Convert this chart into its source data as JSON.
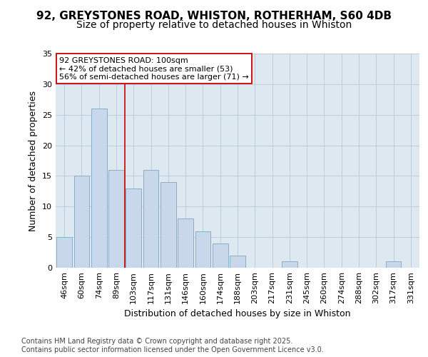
{
  "title_line1": "92, GREYSTONES ROAD, WHISTON, ROTHERHAM, S60 4DB",
  "title_line2": "Size of property relative to detached houses in Whiston",
  "xlabel": "Distribution of detached houses by size in Whiston",
  "ylabel": "Number of detached properties",
  "categories": [
    "46sqm",
    "60sqm",
    "74sqm",
    "89sqm",
    "103sqm",
    "117sqm",
    "131sqm",
    "146sqm",
    "160sqm",
    "174sqm",
    "188sqm",
    "203sqm",
    "217sqm",
    "231sqm",
    "245sqm",
    "260sqm",
    "274sqm",
    "288sqm",
    "302sqm",
    "317sqm",
    "331sqm"
  ],
  "values": [
    5,
    15,
    26,
    16,
    13,
    16,
    14,
    8,
    6,
    4,
    2,
    0,
    0,
    1,
    0,
    0,
    0,
    0,
    0,
    1,
    0
  ],
  "bar_color": "#c8d8ea",
  "bar_edge_color": "#8aafc8",
  "vline_x": 3.5,
  "vline_color": "#cc0000",
  "annotation_text": "92 GREYSTONES ROAD: 100sqm\n← 42% of detached houses are smaller (53)\n56% of semi-detached houses are larger (71) →",
  "annotation_box_color": "#ffffff",
  "annotation_box_edge": "#cc0000",
  "ylim": [
    0,
    35
  ],
  "yticks": [
    0,
    5,
    10,
    15,
    20,
    25,
    30,
    35
  ],
  "bg_color": "#ffffff",
  "plot_bg_color": "#dde8f0",
  "footer": "Contains HM Land Registry data © Crown copyright and database right 2025.\nContains public sector information licensed under the Open Government Licence v3.0.",
  "title_fontsize": 11,
  "subtitle_fontsize": 10,
  "axis_label_fontsize": 9,
  "tick_fontsize": 8,
  "annotation_fontsize": 8,
  "footer_fontsize": 7
}
